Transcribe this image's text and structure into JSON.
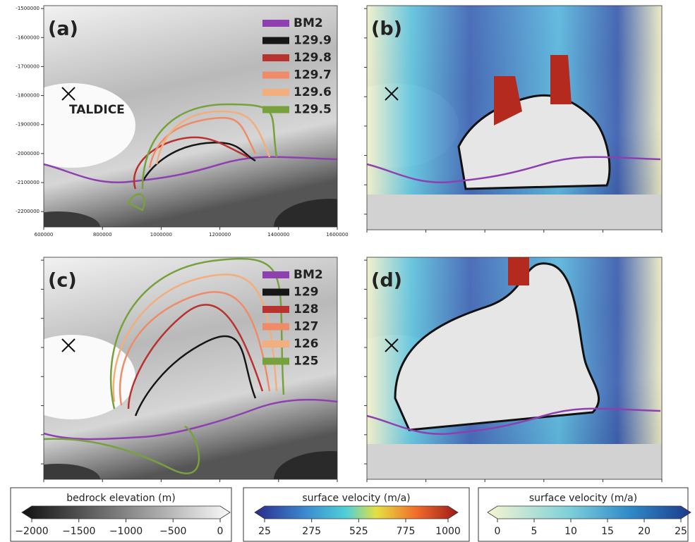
{
  "panels": [
    {
      "label": "(a)",
      "annotation": "TALDICE",
      "legend": [
        {
          "name": "BM2",
          "color": "#8e3fb0"
        },
        {
          "name": "129.9",
          "color": "#161616"
        },
        {
          "name": "129.8",
          "color": "#b8322f"
        },
        {
          "name": "129.7",
          "color": "#ef8b68"
        },
        {
          "name": "129.6",
          "color": "#f2ae7c"
        },
        {
          "name": "129.5",
          "color": "#77a13d"
        }
      ]
    },
    {
      "label": "(b)"
    },
    {
      "label": "(c)",
      "legend": [
        {
          "name": "BM2",
          "color": "#8e3fb0"
        },
        {
          "name": "129",
          "color": "#161616"
        },
        {
          "name": "128",
          "color": "#b8322f"
        },
        {
          "name": "127",
          "color": "#ef8b68"
        },
        {
          "name": "126",
          "color": "#f2ae7c"
        },
        {
          "name": "125",
          "color": "#77a13d"
        }
      ]
    },
    {
      "label": "(d)"
    }
  ],
  "axes": {
    "xlim": [
      600000,
      1600000
    ],
    "ylim": [
      -2253000,
      -1490000
    ],
    "xticks": [
      600000,
      800000,
      1000000,
      1200000,
      1400000,
      1600000
    ],
    "yticks": [
      -1500000,
      -1600000,
      -1700000,
      -1800000,
      -1900000,
      -2000000,
      -2100000,
      -2200000
    ]
  },
  "colorbars": [
    {
      "title": "bedrock elevation (m)",
      "lim": [
        -2000,
        0
      ],
      "ticks": [
        {
          "value": -2000,
          "label": "−2000"
        },
        {
          "value": -1500,
          "label": "−1500"
        },
        {
          "value": -1000,
          "label": "−1000"
        },
        {
          "value": -500,
          "label": "−500"
        },
        0
      ]
    },
    {
      "title": "surface velocity (m/a)",
      "lim": [
        25,
        1000
      ],
      "ticks": [
        25,
        275,
        525,
        775,
        1000
      ]
    },
    {
      "title": "surface velocity (m/a)",
      "lim": [
        0,
        25
      ],
      "ticks": [
        0,
        5,
        10,
        15,
        20,
        25
      ]
    }
  ]
}
